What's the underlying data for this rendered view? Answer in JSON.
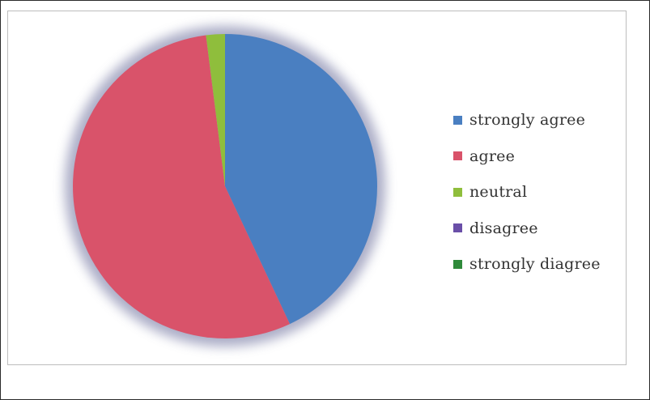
{
  "chart_data": {
    "type": "pie",
    "categories": [
      "strongly agree",
      "agree",
      "neutral",
      "disagree",
      "strongly diagree"
    ],
    "values": [
      43,
      55,
      2,
      0,
      0
    ],
    "unit": "%",
    "start_angle_deg": 0,
    "direction": "clockwise",
    "legend_position": "right",
    "colors": [
      "#4a7fc1",
      "#d9536a",
      "#8fbe3c",
      "#6a4fa8",
      "#2f8a3a"
    ],
    "title": "",
    "shadow": true
  }
}
